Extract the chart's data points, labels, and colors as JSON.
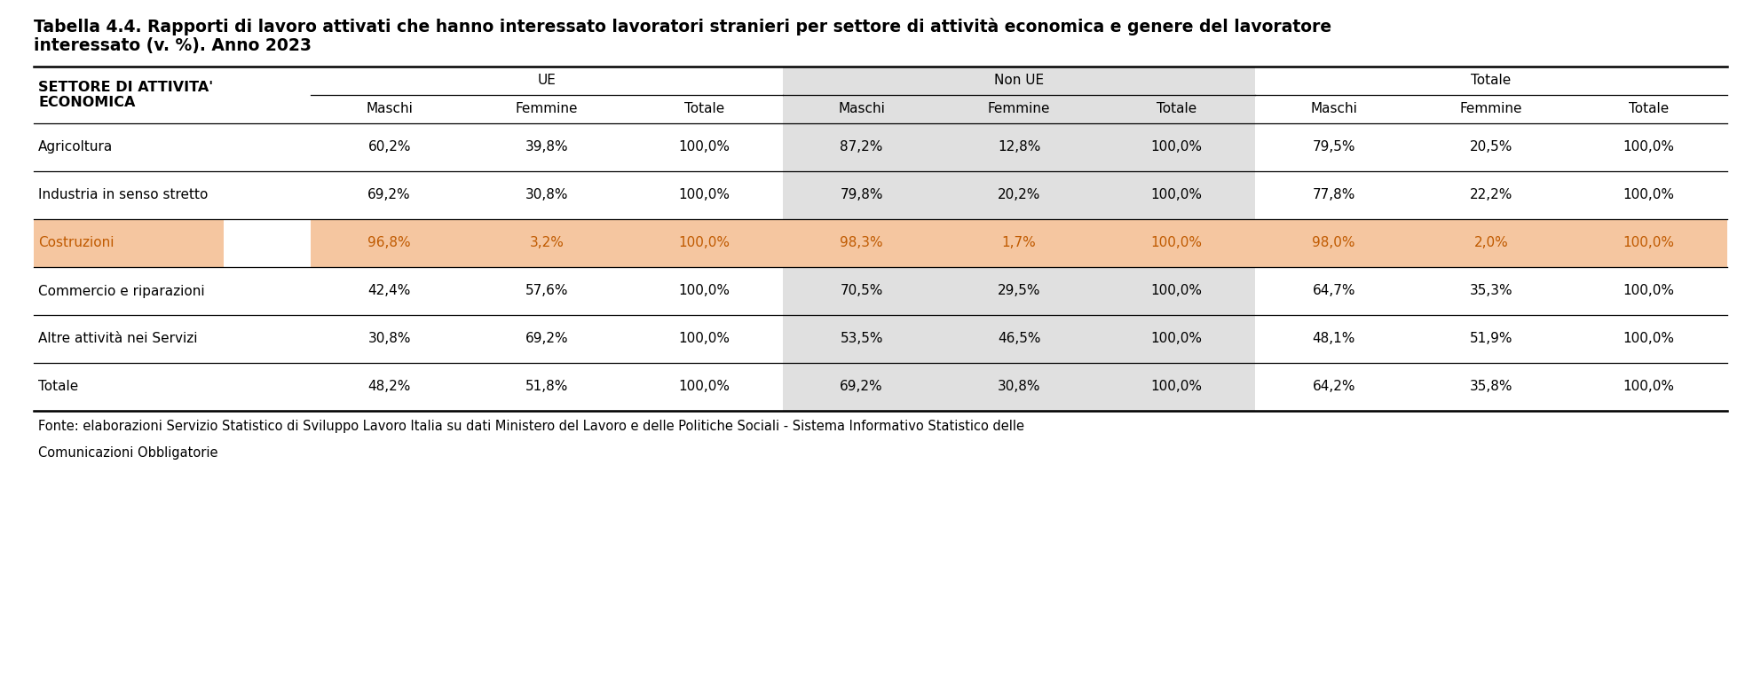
{
  "title_line1": "Tabella 4.4. Rapporti di lavoro attivati che hanno interessato lavoratori stranieri per settore di attività economica e genere del lavoratore",
  "title_line2": "interessato (v. %). Anno 2023",
  "footer_line1": "Fonte: elaborazioni Servizio Statistico di Sviluppo Lavoro Italia su dati Ministero del Lavoro e delle Politiche Sociali - Sistema Informativo Statistico delle",
  "footer_line2": "Comunicazioni Obbligatorie",
  "col_subheaders": [
    "Maschi",
    "Femmine",
    "Totale"
  ],
  "col_groups": [
    "UE",
    "Non UE",
    "Totale"
  ],
  "rows": [
    {
      "label": "Agricoltura",
      "highlight": false,
      "values": [
        "60,2%",
        "39,8%",
        "100,0%",
        "87,2%",
        "12,8%",
        "100,0%",
        "79,5%",
        "20,5%",
        "100,0%"
      ]
    },
    {
      "label": "Industria in senso stretto",
      "highlight": false,
      "values": [
        "69,2%",
        "30,8%",
        "100,0%",
        "79,8%",
        "20,2%",
        "100,0%",
        "77,8%",
        "22,2%",
        "100,0%"
      ]
    },
    {
      "label": "Costruzioni",
      "highlight": true,
      "values": [
        "96,8%",
        "3,2%",
        "100,0%",
        "98,3%",
        "1,7%",
        "100,0%",
        "98,0%",
        "2,0%",
        "100,0%"
      ]
    },
    {
      "label": "Commercio e riparazioni",
      "highlight": false,
      "values": [
        "42,4%",
        "57,6%",
        "100,0%",
        "70,5%",
        "29,5%",
        "100,0%",
        "64,7%",
        "35,3%",
        "100,0%"
      ]
    },
    {
      "label": "Altre attività nei Servizi",
      "highlight": false,
      "values": [
        "30,8%",
        "69,2%",
        "100,0%",
        "53,5%",
        "46,5%",
        "100,0%",
        "48,1%",
        "51,9%",
        "100,0%"
      ]
    },
    {
      "label": "Totale",
      "highlight": false,
      "values": [
        "48,2%",
        "51,8%",
        "100,0%",
        "69,2%",
        "30,8%",
        "100,0%",
        "64,2%",
        "35,8%",
        "100,0%"
      ]
    }
  ],
  "highlight_color": "#f5c6a0",
  "highlight_label_color": "#c05a00",
  "nonue_bg_color": "#e0e0e0",
  "bg_color": "#ffffff",
  "text_color": "#000000",
  "title_fontsize": 13.5,
  "header_fontsize": 11,
  "cell_fontsize": 11,
  "footer_fontsize": 10.5,
  "section_header_fontsize": 11.5
}
